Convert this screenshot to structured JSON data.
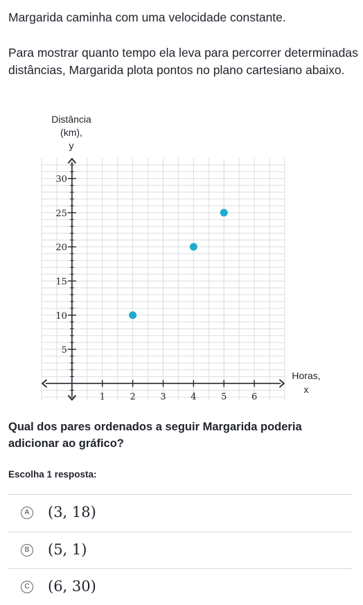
{
  "intro": "Margarida caminha com uma velocidade constante.",
  "description": "Para mostrar quanto tempo ela leva para percorrer determinadas distâncias, Margarida plota pontos no plano cartesiano abaixo.",
  "chart_data": {
    "type": "scatter",
    "ylabel_lines": [
      "Distância",
      "(km),",
      "y"
    ],
    "xlabel_lines": [
      "Horas,",
      "x"
    ],
    "xlim": [
      -1,
      7
    ],
    "ylim": [
      -2.5,
      33
    ],
    "x_ticks": [
      1,
      2,
      3,
      4,
      5,
      6
    ],
    "y_ticks": [
      5,
      10,
      15,
      20,
      25,
      30
    ],
    "grid": true,
    "point_color": "#1fabcf",
    "points": [
      {
        "x": 2,
        "y": 10
      },
      {
        "x": 4,
        "y": 20
      },
      {
        "x": 5,
        "y": 25
      }
    ]
  },
  "question": "Qual dos pares ordenados a seguir Margarida poderia adicionar ao gráfico?",
  "instruction": "Escolha 1 resposta:",
  "options": [
    {
      "letter": "A",
      "text": "(3, 18)"
    },
    {
      "letter": "B",
      "text": "(5, 1)"
    },
    {
      "letter": "C",
      "text": "(6, 30)"
    }
  ]
}
